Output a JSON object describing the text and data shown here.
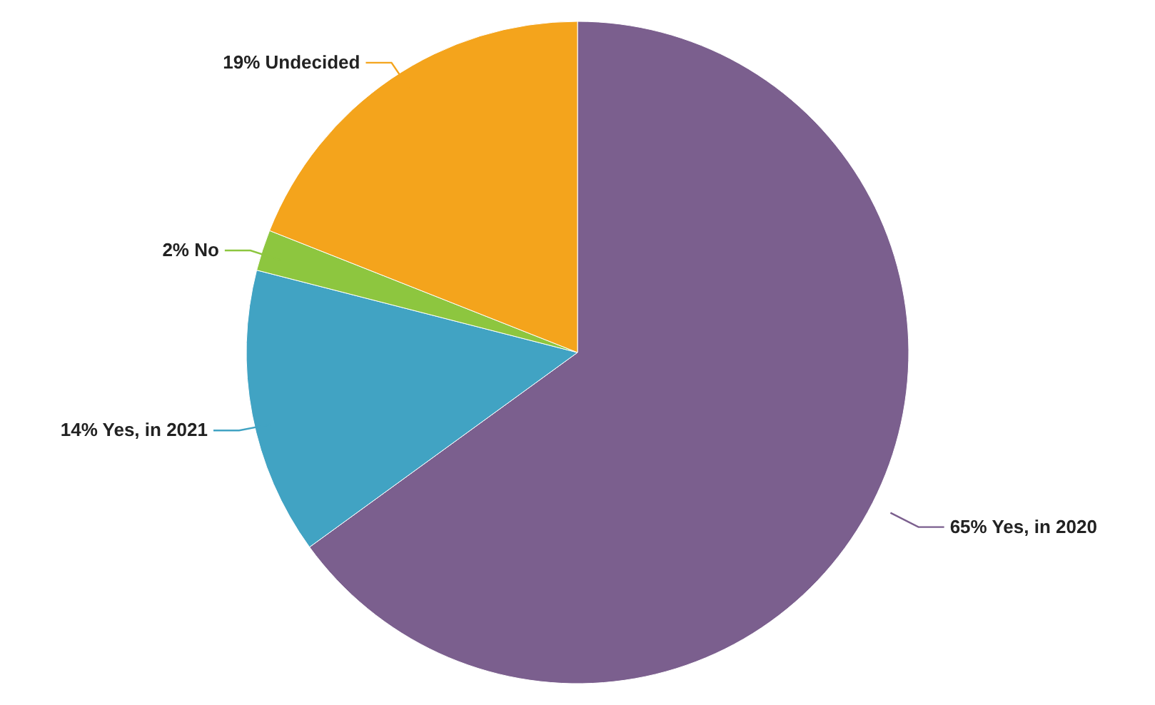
{
  "chart_data": {
    "type": "pie",
    "categories": [
      "65% Yes, in 2020",
      "14% Yes, in 2021",
      "2% No",
      "19% Undecided"
    ],
    "values": [
      65,
      14,
      2,
      19
    ],
    "colors": [
      "#7b5f8e",
      "#41a3c3",
      "#8dc63f",
      "#f4a41c"
    ]
  }
}
